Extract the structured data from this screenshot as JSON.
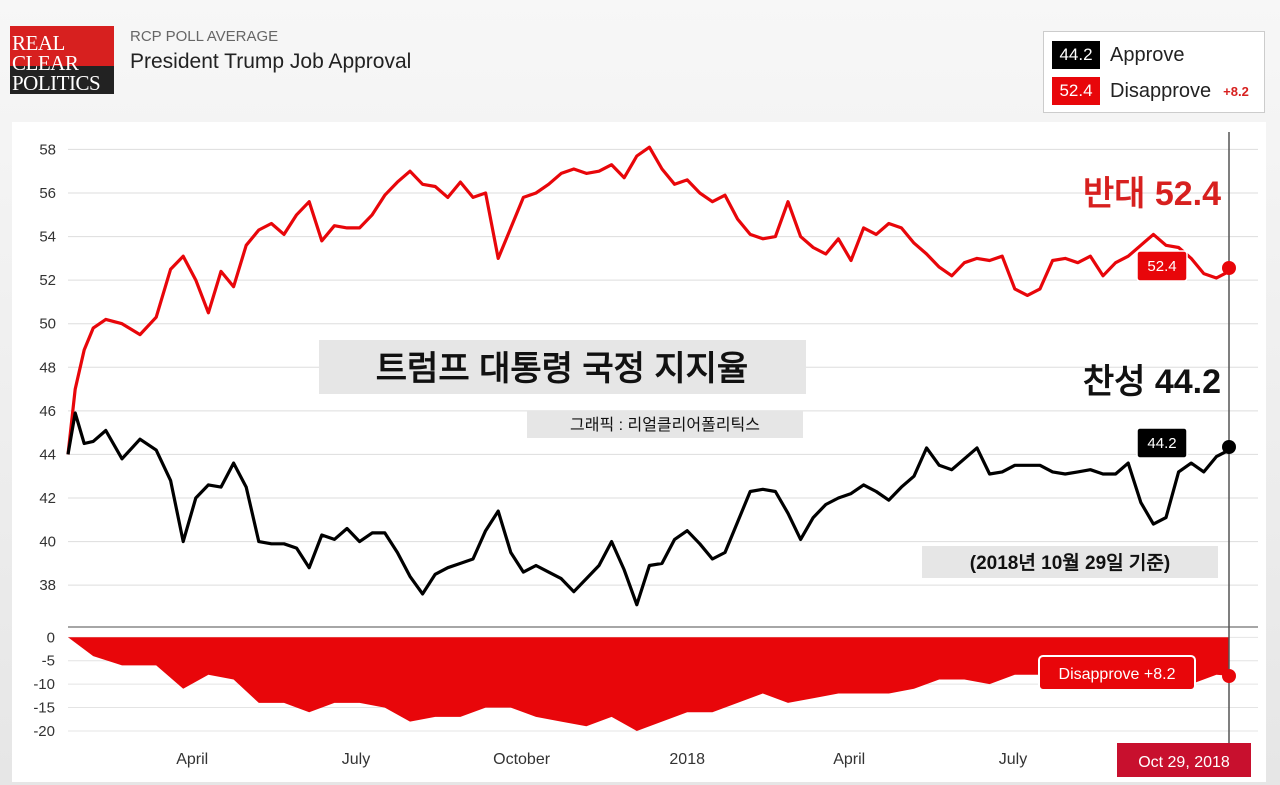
{
  "header": {
    "logo_lines": [
      "REAL",
      "CLEAR",
      "POLITICS"
    ],
    "subtitle": "RCP POLL AVERAGE",
    "title": "President Trump Job Approval"
  },
  "legend": {
    "approve_value": "44.2",
    "approve_label": "Approve",
    "disapprove_value": "52.4",
    "disapprove_label": "Disapprove",
    "spread": "+8.2"
  },
  "overlay": {
    "korean_title": "트럼프 대통령 국정 지지율",
    "credit": "그래픽 :  리얼클리어폴리틱스",
    "date_note": "(2018년 10월 29일 기준)",
    "disapprove_big": "반대 52.4",
    "approve_big": "찬성 44.2",
    "approve_flag": "44.2",
    "disapprove_flag": "52.4",
    "spread_flag": "Disapprove +8.2",
    "date_flag": "Oct 29, 2018"
  },
  "colors": {
    "approve": "#000000",
    "disapprove": "#e8060a",
    "accent": "#d7201f"
  },
  "chart_data": [
    {
      "type": "line",
      "title": "President Trump Job Approval",
      "xlabel": "",
      "ylabel": "",
      "x_ticks": [
        "April",
        "July",
        "October",
        "2018",
        "April",
        "July"
      ],
      "x_tick_dates": [
        "2017-04-01",
        "2017-07-01",
        "2017-10-01",
        "2018-01-01",
        "2018-04-01",
        "2018-07-01"
      ],
      "x_range": [
        "2017-01-22",
        "2018-10-29"
      ],
      "ylim": [
        36.4,
        58.8
      ],
      "y_ticks": [
        38,
        40,
        42,
        44,
        46,
        48,
        50,
        52,
        54,
        56,
        58
      ],
      "grid": true,
      "series": [
        {
          "name": "Disapprove",
          "x": [
            "2017-01-22",
            "2017-01-26",
            "2017-01-31",
            "2017-02-05",
            "2017-02-12",
            "2017-02-21",
            "2017-03-03",
            "2017-03-12",
            "2017-03-20",
            "2017-03-27",
            "2017-04-03",
            "2017-04-10",
            "2017-04-17",
            "2017-04-24",
            "2017-05-01",
            "2017-05-08",
            "2017-05-15",
            "2017-05-22",
            "2017-05-29",
            "2017-06-05",
            "2017-06-12",
            "2017-06-19",
            "2017-06-26",
            "2017-07-03",
            "2017-07-10",
            "2017-07-17",
            "2017-07-24",
            "2017-07-31",
            "2017-08-07",
            "2017-08-14",
            "2017-08-21",
            "2017-08-28",
            "2017-09-04",
            "2017-09-11",
            "2017-09-18",
            "2017-09-25",
            "2017-10-02",
            "2017-10-09",
            "2017-10-16",
            "2017-10-23",
            "2017-10-30",
            "2017-11-06",
            "2017-11-13",
            "2017-11-20",
            "2017-11-27",
            "2017-12-04",
            "2017-12-11",
            "2017-12-18",
            "2017-12-25",
            "2018-01-01",
            "2018-01-08",
            "2018-01-15",
            "2018-01-22",
            "2018-01-29",
            "2018-02-05",
            "2018-02-12",
            "2018-02-19",
            "2018-02-26",
            "2018-03-05",
            "2018-03-12",
            "2018-03-19",
            "2018-03-26",
            "2018-04-02",
            "2018-04-09",
            "2018-04-16",
            "2018-04-23",
            "2018-04-30",
            "2018-05-07",
            "2018-05-14",
            "2018-05-21",
            "2018-05-28",
            "2018-06-04",
            "2018-06-11",
            "2018-06-18",
            "2018-06-25",
            "2018-07-02",
            "2018-07-09",
            "2018-07-16",
            "2018-07-23",
            "2018-07-30",
            "2018-08-06",
            "2018-08-13",
            "2018-08-20",
            "2018-08-27",
            "2018-09-03",
            "2018-09-10",
            "2018-09-17",
            "2018-09-24",
            "2018-10-01",
            "2018-10-08",
            "2018-10-15",
            "2018-10-22",
            "2018-10-29"
          ],
          "values": [
            44.0,
            47.0,
            48.8,
            49.8,
            50.2,
            50.0,
            49.5,
            50.3,
            52.5,
            53.1,
            52.0,
            50.5,
            52.4,
            51.7,
            53.6,
            54.3,
            54.6,
            54.1,
            55.0,
            55.6,
            53.8,
            54.5,
            54.4,
            54.4,
            55.0,
            55.9,
            56.5,
            57.0,
            56.4,
            56.3,
            55.8,
            56.5,
            55.8,
            56.0,
            53.0,
            54.4,
            55.8,
            56.0,
            56.4,
            56.9,
            57.1,
            56.9,
            57.0,
            57.3,
            56.7,
            57.7,
            58.1,
            57.1,
            56.4,
            56.6,
            56.0,
            55.6,
            55.9,
            54.8,
            54.1,
            53.9,
            54.0,
            55.6,
            54.0,
            53.5,
            53.2,
            53.9,
            52.9,
            54.4,
            54.1,
            54.6,
            54.4,
            53.7,
            53.2,
            52.6,
            52.2,
            52.8,
            53.0,
            52.9,
            53.1,
            51.6,
            51.3,
            51.6,
            52.9,
            53.0,
            52.8,
            53.1,
            52.2,
            52.8,
            53.1,
            53.6,
            54.1,
            53.6,
            53.5,
            53.0,
            52.3,
            52.1,
            52.4
          ]
        },
        {
          "name": "Approve",
          "x": [
            "2017-01-22",
            "2017-01-26",
            "2017-01-31",
            "2017-02-05",
            "2017-02-12",
            "2017-02-21",
            "2017-03-03",
            "2017-03-12",
            "2017-03-20",
            "2017-03-27",
            "2017-04-03",
            "2017-04-10",
            "2017-04-17",
            "2017-04-24",
            "2017-05-01",
            "2017-05-08",
            "2017-05-15",
            "2017-05-22",
            "2017-05-29",
            "2017-06-05",
            "2017-06-12",
            "2017-06-19",
            "2017-06-26",
            "2017-07-03",
            "2017-07-10",
            "2017-07-17",
            "2017-07-24",
            "2017-07-31",
            "2017-08-07",
            "2017-08-14",
            "2017-08-21",
            "2017-08-28",
            "2017-09-04",
            "2017-09-11",
            "2017-09-18",
            "2017-09-25",
            "2017-10-02",
            "2017-10-09",
            "2017-10-16",
            "2017-10-23",
            "2017-10-30",
            "2017-11-06",
            "2017-11-13",
            "2017-11-20",
            "2017-11-27",
            "2017-12-04",
            "2017-12-11",
            "2017-12-18",
            "2017-12-25",
            "2018-01-01",
            "2018-01-08",
            "2018-01-15",
            "2018-01-22",
            "2018-01-29",
            "2018-02-05",
            "2018-02-12",
            "2018-02-19",
            "2018-02-26",
            "2018-03-05",
            "2018-03-12",
            "2018-03-19",
            "2018-03-26",
            "2018-04-02",
            "2018-04-09",
            "2018-04-16",
            "2018-04-23",
            "2018-04-30",
            "2018-05-07",
            "2018-05-14",
            "2018-05-21",
            "2018-05-28",
            "2018-06-04",
            "2018-06-11",
            "2018-06-18",
            "2018-06-25",
            "2018-07-02",
            "2018-07-09",
            "2018-07-16",
            "2018-07-23",
            "2018-07-30",
            "2018-08-06",
            "2018-08-13",
            "2018-08-20",
            "2018-08-27",
            "2018-09-03",
            "2018-09-10",
            "2018-09-17",
            "2018-09-24",
            "2018-10-01",
            "2018-10-08",
            "2018-10-15",
            "2018-10-22",
            "2018-10-29"
          ],
          "values": [
            44.0,
            45.9,
            44.5,
            44.6,
            45.1,
            43.8,
            44.7,
            44.2,
            42.8,
            40.0,
            42.0,
            42.6,
            42.5,
            43.6,
            42.5,
            40.0,
            39.9,
            39.9,
            39.7,
            38.8,
            40.3,
            40.1,
            40.6,
            40.0,
            40.4,
            40.4,
            39.5,
            38.4,
            37.6,
            38.5,
            38.8,
            39.0,
            39.2,
            40.5,
            41.4,
            39.5,
            38.6,
            38.9,
            38.6,
            38.3,
            37.7,
            38.3,
            38.9,
            40.0,
            38.7,
            37.1,
            38.9,
            39.0,
            40.1,
            40.5,
            39.9,
            39.2,
            39.5,
            40.9,
            42.3,
            42.4,
            42.3,
            41.3,
            40.1,
            41.1,
            41.7,
            42.0,
            42.2,
            42.6,
            42.3,
            41.9,
            42.5,
            43.0,
            44.3,
            43.5,
            43.3,
            43.8,
            44.3,
            43.1,
            43.2,
            43.5,
            43.5,
            43.5,
            43.2,
            43.1,
            43.2,
            43.3,
            43.1,
            43.1,
            43.6,
            41.8,
            40.8,
            41.1,
            43.2,
            43.6,
            43.2,
            43.9,
            44.2
          ]
        }
      ]
    },
    {
      "type": "area",
      "xlabel": "",
      "ylabel": "",
      "x_ticks": [
        "April",
        "July",
        "October",
        "2018",
        "April",
        "July"
      ],
      "x_tick_dates": [
        "2017-04-01",
        "2017-07-01",
        "2017-10-01",
        "2018-01-01",
        "2018-04-01",
        "2018-07-01"
      ],
      "x_range": [
        "2017-01-22",
        "2018-10-29"
      ],
      "ylim": [
        -23,
        0.5
      ],
      "y_ticks": [
        0,
        -5,
        -10,
        -15,
        -20
      ],
      "grid": false,
      "series": [
        {
          "name": "Spread",
          "x": [
            "2017-01-22",
            "2017-02-05",
            "2017-02-21",
            "2017-03-12",
            "2017-03-27",
            "2017-04-10",
            "2017-04-24",
            "2017-05-08",
            "2017-05-22",
            "2017-06-05",
            "2017-06-19",
            "2017-07-03",
            "2017-07-17",
            "2017-07-31",
            "2017-08-14",
            "2017-08-28",
            "2017-09-11",
            "2017-09-25",
            "2017-10-09",
            "2017-10-23",
            "2017-11-06",
            "2017-11-20",
            "2017-12-04",
            "2017-12-18",
            "2018-01-01",
            "2018-01-15",
            "2018-01-29",
            "2018-02-12",
            "2018-02-26",
            "2018-03-12",
            "2018-03-26",
            "2018-04-09",
            "2018-04-23",
            "2018-05-07",
            "2018-05-21",
            "2018-06-04",
            "2018-06-18",
            "2018-07-02",
            "2018-07-16",
            "2018-07-30",
            "2018-08-13",
            "2018-08-27",
            "2018-09-10",
            "2018-09-24",
            "2018-10-08",
            "2018-10-22",
            "2018-10-29"
          ],
          "values": [
            0,
            -4,
            -6,
            -6,
            -11,
            -8,
            -9,
            -14,
            -14,
            -16,
            -14,
            -14,
            -15,
            -18,
            -17,
            -17,
            -15,
            -15,
            -17,
            -18,
            -19,
            -17,
            -20,
            -18,
            -16,
            -16,
            -14,
            -12,
            -14,
            -13,
            -12,
            -12,
            -12,
            -11,
            -9,
            -9,
            -10,
            -8,
            -8,
            -10,
            -10,
            -9,
            -11,
            -11,
            -10,
            -8,
            -8.2
          ]
        }
      ]
    }
  ]
}
